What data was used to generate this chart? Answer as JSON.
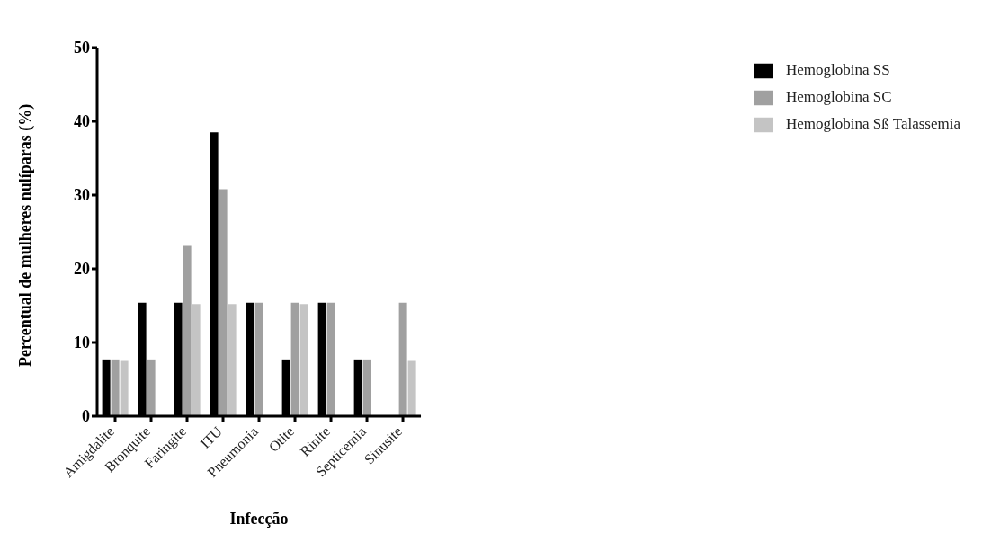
{
  "chart_data": {
    "type": "bar",
    "xlabel": "Infecção",
    "ylabel": "Percentual de mulheres nulíparas (%)",
    "categories": [
      "Amigdalite",
      "Bronquite",
      "Faringite",
      "ITU",
      "Pneumonia",
      "Otite",
      "Rinite",
      "Septicemia",
      "Sinusite"
    ],
    "series": [
      {
        "name": "Hemoglobina SS",
        "color": "#000000",
        "values": [
          7.7,
          15.4,
          15.4,
          38.5,
          15.4,
          7.7,
          15.4,
          7.7,
          0
        ]
      },
      {
        "name": "Hemoglobina SC",
        "color": "#a0a0a0",
        "values": [
          7.7,
          7.7,
          23.1,
          30.8,
          15.4,
          15.4,
          15.4,
          7.7,
          15.4
        ]
      },
      {
        "name": "Hemoglobina Sß Talassemia",
        "color": "#c4c4c4",
        "values": [
          7.5,
          0,
          15.2,
          15.2,
          0,
          15.2,
          0,
          0,
          7.5
        ]
      }
    ],
    "ylim": [
      0,
      50
    ],
    "yticks": [
      0,
      10,
      20,
      30,
      40,
      50
    ],
    "legend": "top right"
  }
}
